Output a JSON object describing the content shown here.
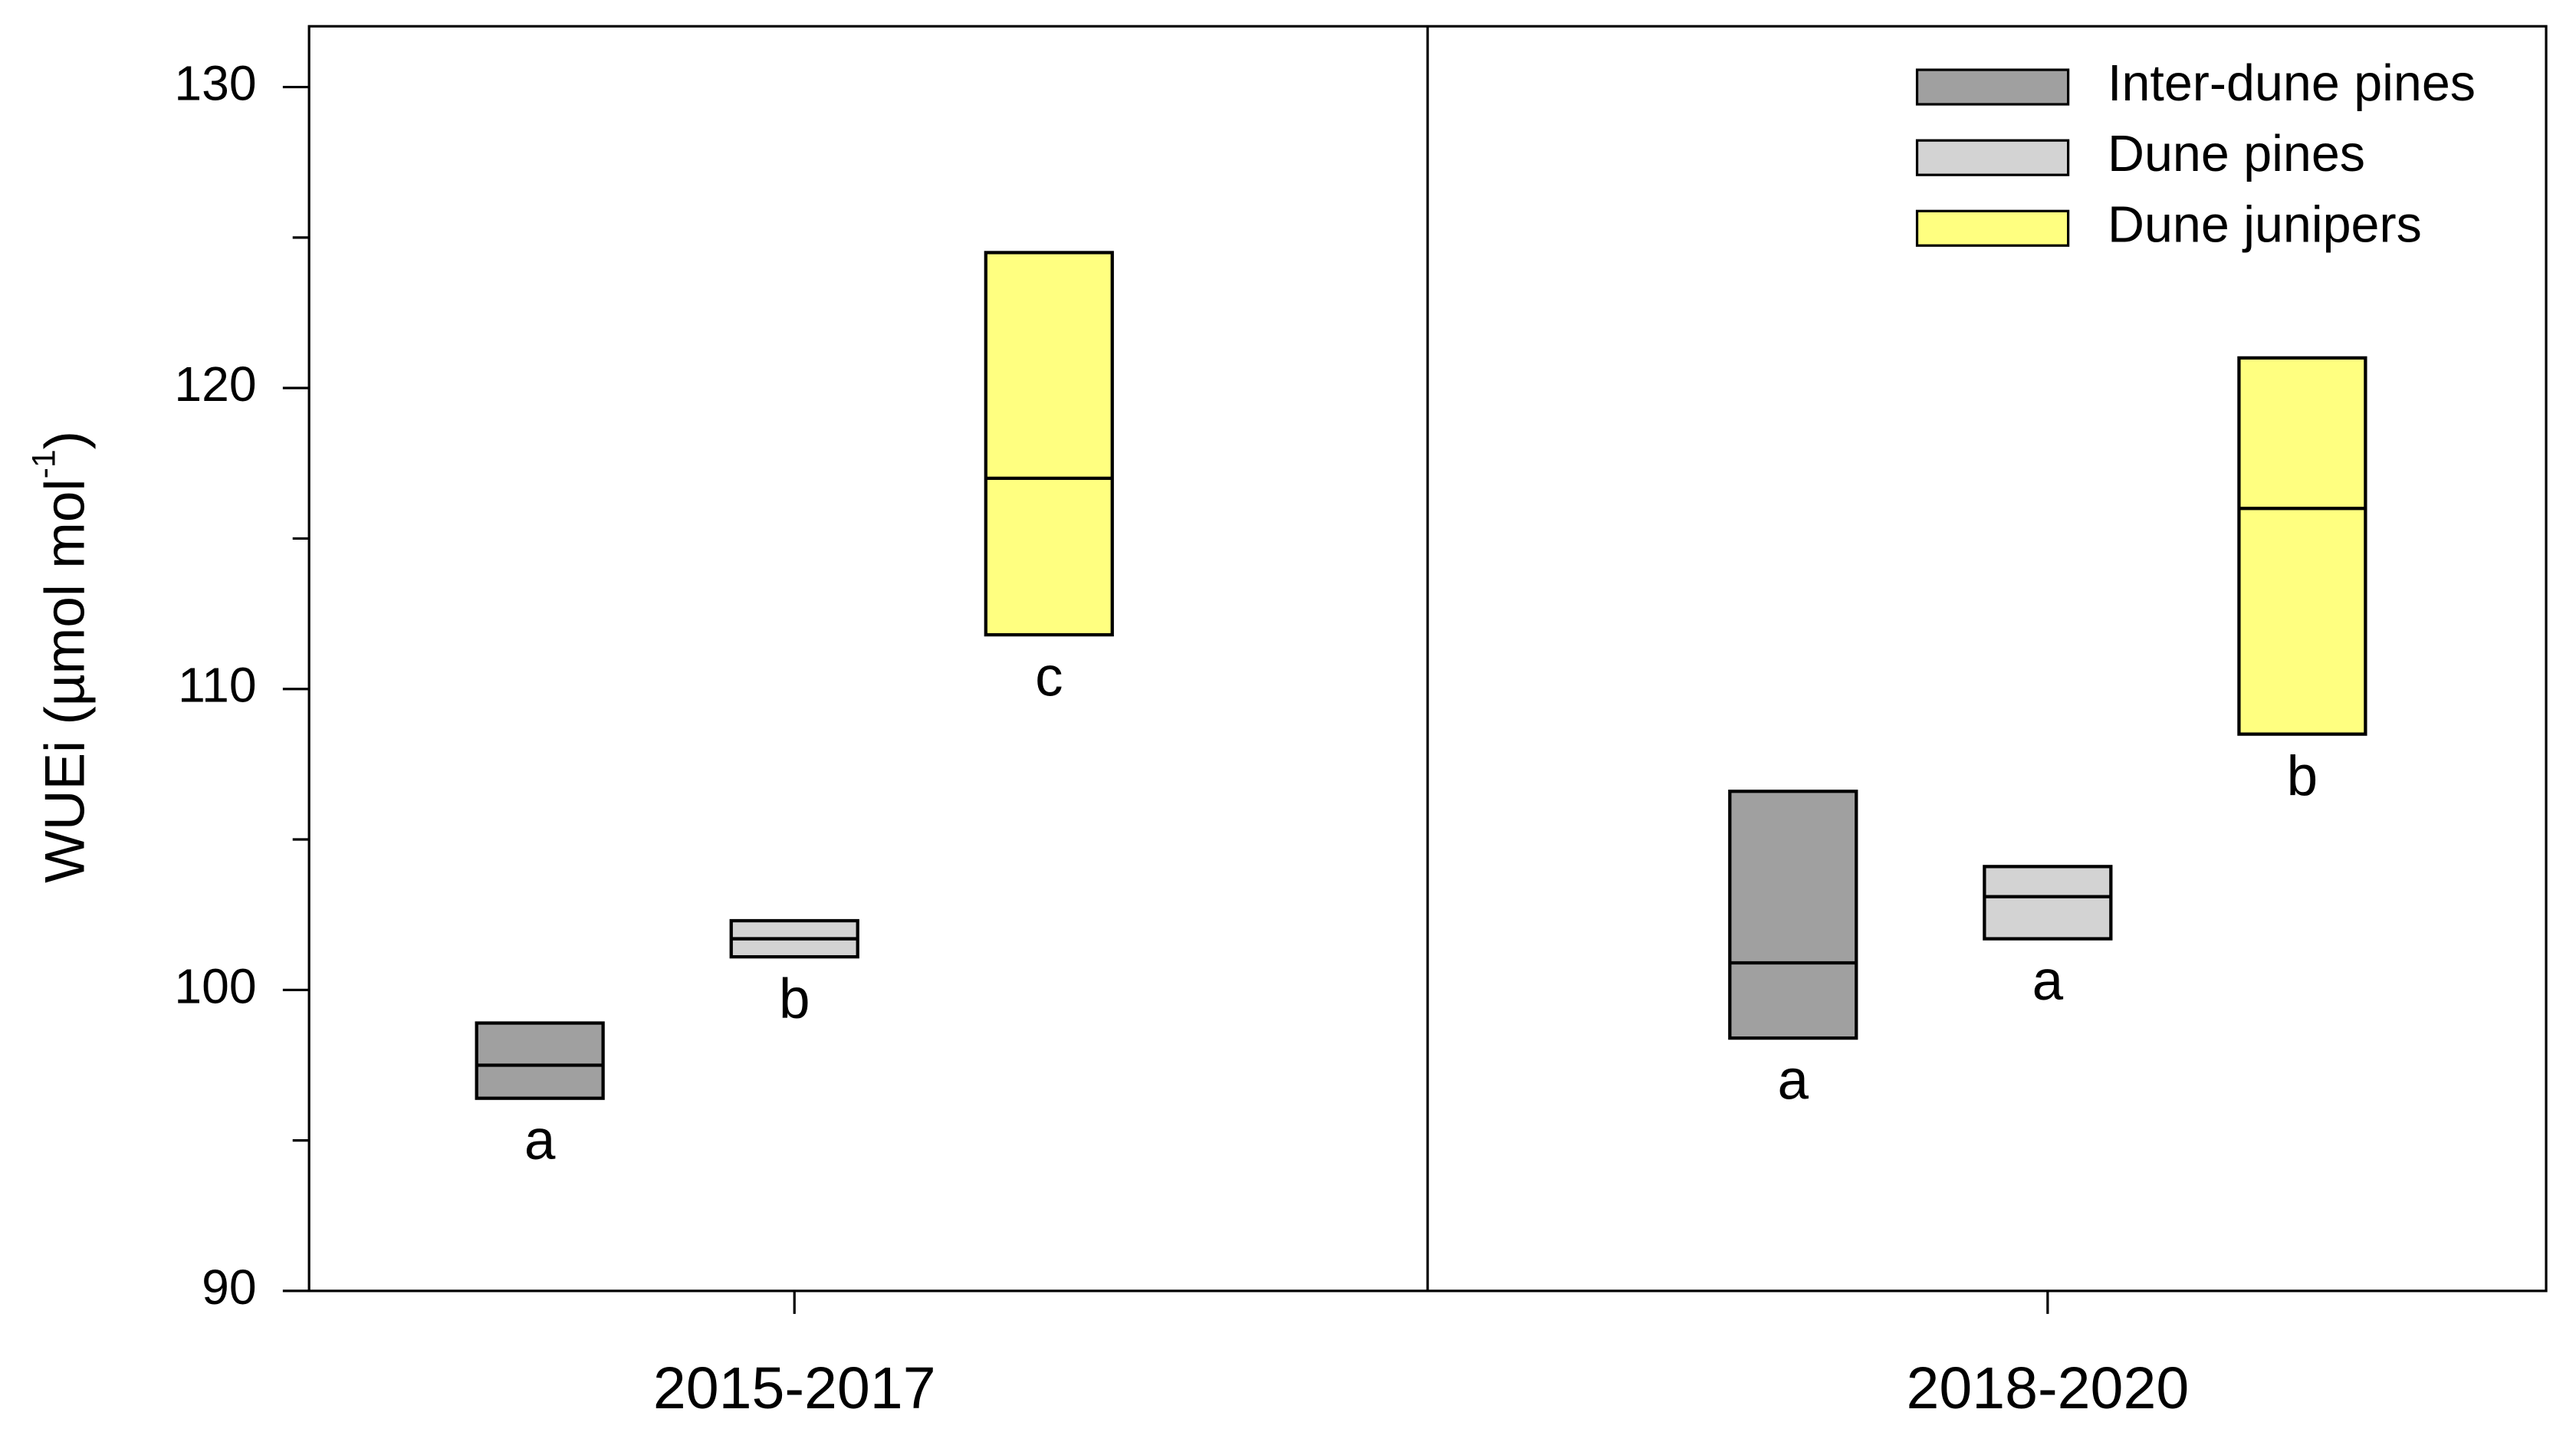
{
  "chart_data": {
    "type": "box",
    "ylabel": [
      "WUEi (µmol mol",
      "-1",
      ")"
    ],
    "categories": [
      "2015-2017",
      "2018-2020"
    ],
    "ylim": [
      90,
      130
    ],
    "yticks": [
      90,
      100,
      110,
      120,
      130
    ],
    "yminorticks": [
      95,
      105,
      115,
      125
    ],
    "legend_position": "upper right",
    "series": [
      {
        "name": "Inter-dune pines",
        "color": "#a0a0a0",
        "low": [
          96.4,
          98.4
        ],
        "median": [
          97.5,
          100.9
        ],
        "high": [
          98.9,
          106.6
        ],
        "letters": [
          "a",
          "a"
        ]
      },
      {
        "name": "Dune pines",
        "color": "#d3d3d3",
        "low": [
          101.1,
          101.7
        ],
        "median": [
          101.7,
          103.1
        ],
        "high": [
          102.3,
          104.1
        ],
        "letters": [
          "b",
          "a"
        ]
      },
      {
        "name": "Dune junipers",
        "color": "#ffff80",
        "low": [
          111.8,
          108.5
        ],
        "median": [
          117.0,
          116.0
        ],
        "high": [
          124.5,
          121.0
        ],
        "letters": [
          "c",
          "b"
        ]
      }
    ]
  }
}
